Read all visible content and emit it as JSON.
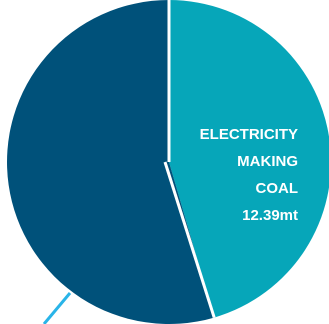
{
  "chart_data": {
    "type": "pie",
    "slices": [
      {
        "label_lines": [
          "ELECTRICITY",
          "MAKING",
          "COAL"
        ],
        "value_label": "12.39mt",
        "value": 12.39,
        "share": 0.455,
        "color": "#06a6b9"
      },
      {
        "label_lines": [],
        "value_label": "",
        "share": 0.545,
        "color": "#00517a"
      }
    ],
    "separator_color": "#ffffff",
    "leader_line_color": "#29b4e8"
  }
}
